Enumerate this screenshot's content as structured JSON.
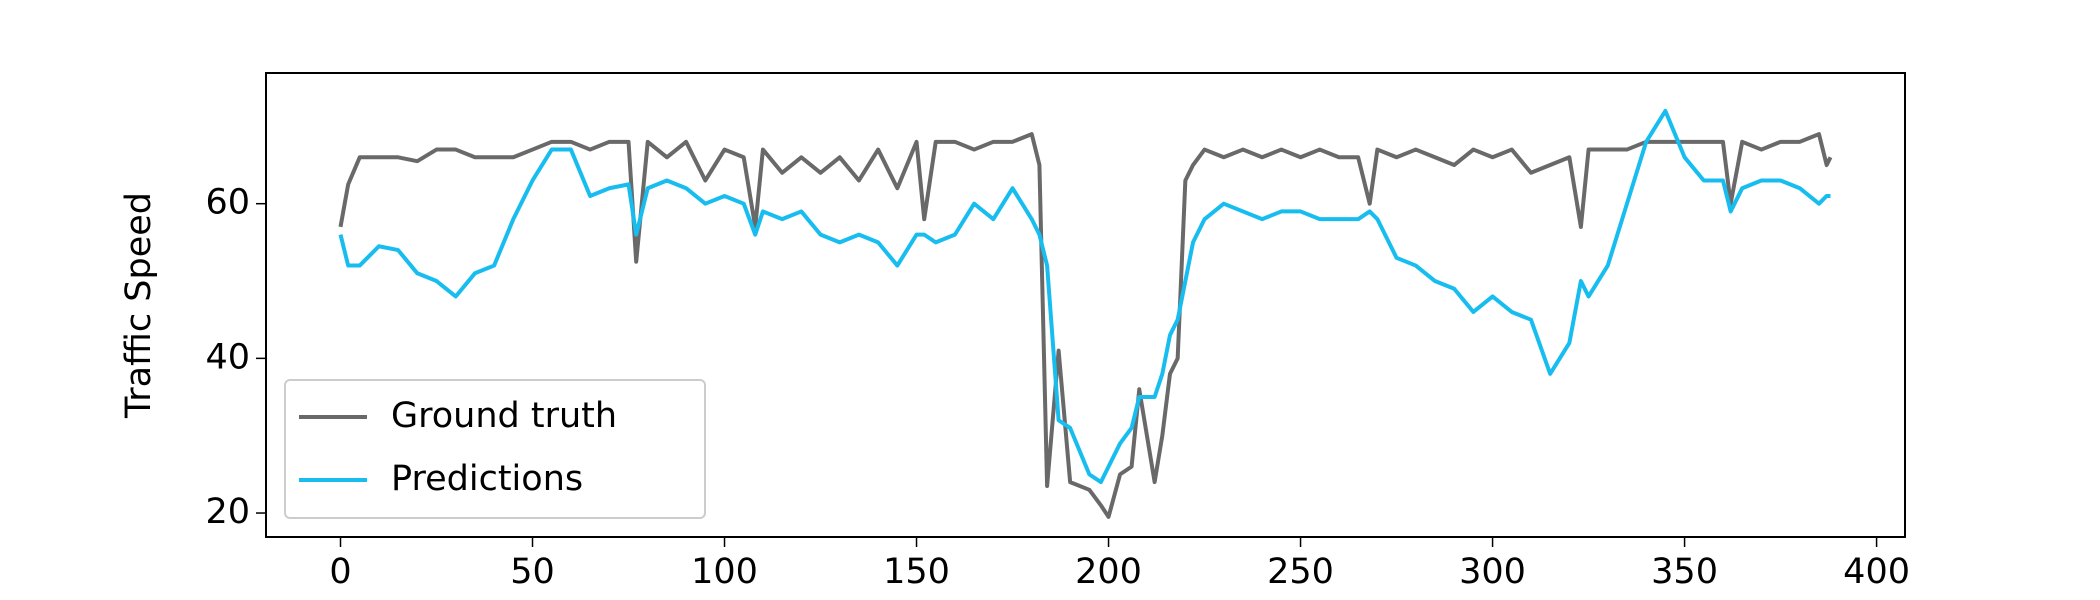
{
  "chart_data": {
    "type": "line",
    "y_label": "Traffic Speed",
    "x": [
      0,
      2,
      5,
      10,
      15,
      20,
      25,
      30,
      35,
      40,
      45,
      50,
      55,
      60,
      65,
      70,
      75,
      77,
      80,
      85,
      90,
      95,
      100,
      105,
      108,
      110,
      115,
      120,
      125,
      130,
      135,
      140,
      145,
      150,
      152,
      155,
      160,
      165,
      170,
      175,
      180,
      182,
      184,
      187,
      190,
      195,
      198,
      200,
      203,
      206,
      208,
      210,
      212,
      214,
      216,
      218,
      220,
      222,
      225,
      230,
      235,
      240,
      245,
      250,
      255,
      260,
      265,
      268,
      270,
      275,
      280,
      285,
      290,
      295,
      300,
      305,
      310,
      315,
      320,
      323,
      325,
      330,
      335,
      340,
      345,
      350,
      355,
      360,
      362,
      365,
      370,
      375,
      380,
      385,
      387,
      388
    ],
    "series": [
      {
        "name": "Ground truth",
        "color": "#696969",
        "values": [
          57,
          62.5,
          66,
          66,
          66,
          65.5,
          67,
          67,
          66,
          66,
          66,
          67,
          68,
          68,
          67,
          68,
          68,
          52.5,
          68,
          66,
          68,
          63,
          67,
          66,
          57,
          67,
          64,
          66,
          64,
          66,
          63,
          67,
          62,
          68,
          58,
          68,
          68,
          67,
          68,
          68,
          69,
          65,
          23.5,
          41,
          24,
          23,
          21,
          19.5,
          25,
          26,
          36,
          30,
          24,
          30,
          38,
          40,
          63,
          65,
          67,
          66,
          67,
          66,
          67,
          66,
          67,
          66,
          66,
          60,
          67,
          66,
          67,
          66,
          65,
          67,
          66,
          67,
          64,
          65,
          66,
          57,
          67,
          67,
          67,
          68,
          68,
          68,
          68,
          68,
          60,
          68,
          67,
          68,
          68,
          69,
          65,
          66
        ]
      },
      {
        "name": "Predictions",
        "color": "#18bdf0",
        "values": [
          56,
          52,
          52,
          54.5,
          54,
          51,
          50,
          48,
          51,
          52,
          58,
          63,
          67,
          67,
          61,
          62,
          62.5,
          56,
          62,
          63,
          62,
          60,
          61,
          60,
          56,
          59,
          58,
          59,
          56,
          55,
          56,
          55,
          52,
          56,
          56,
          55,
          56,
          60,
          58,
          62,
          58,
          56,
          52,
          32,
          31,
          25,
          24,
          26,
          29,
          31,
          35,
          35,
          35,
          38,
          43,
          45,
          50,
          55,
          58,
          60,
          59,
          58,
          59,
          59,
          58,
          58,
          58,
          59,
          58,
          53,
          52,
          50,
          49,
          46,
          48,
          46,
          45,
          38,
          42,
          50,
          48,
          52,
          60,
          68,
          72,
          66,
          63,
          63,
          59,
          62,
          63,
          63,
          62,
          60,
          61,
          61
        ]
      }
    ],
    "xlim": [
      -19.4,
      407.4
    ],
    "ylim": [
      16.9,
      76.9
    ],
    "xticks": [
      0,
      50,
      100,
      150,
      200,
      250,
      300,
      350,
      400
    ],
    "yticks": [
      20,
      40,
      60
    ],
    "legend": "lower left",
    "grid": false
  }
}
